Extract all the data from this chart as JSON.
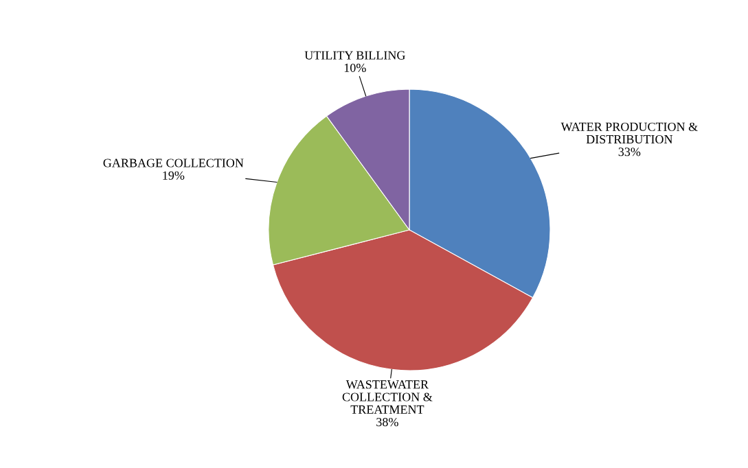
{
  "chart_data": {
    "type": "pie",
    "categories": [
      "WATER PRODUCTION &\nDISTRIBUTION",
      "WASTEWATER\nCOLLECTION &\nTREATMENT",
      "GARBAGE COLLECTION",
      "UTILITY BILLING"
    ],
    "values": [
      33,
      38,
      19,
      10
    ],
    "colors": [
      "#4f81bd",
      "#c0504d",
      "#9bbb59",
      "#8064a2"
    ],
    "value_labels": [
      "33%",
      "38%",
      "19%",
      "10%"
    ],
    "legend": false
  }
}
